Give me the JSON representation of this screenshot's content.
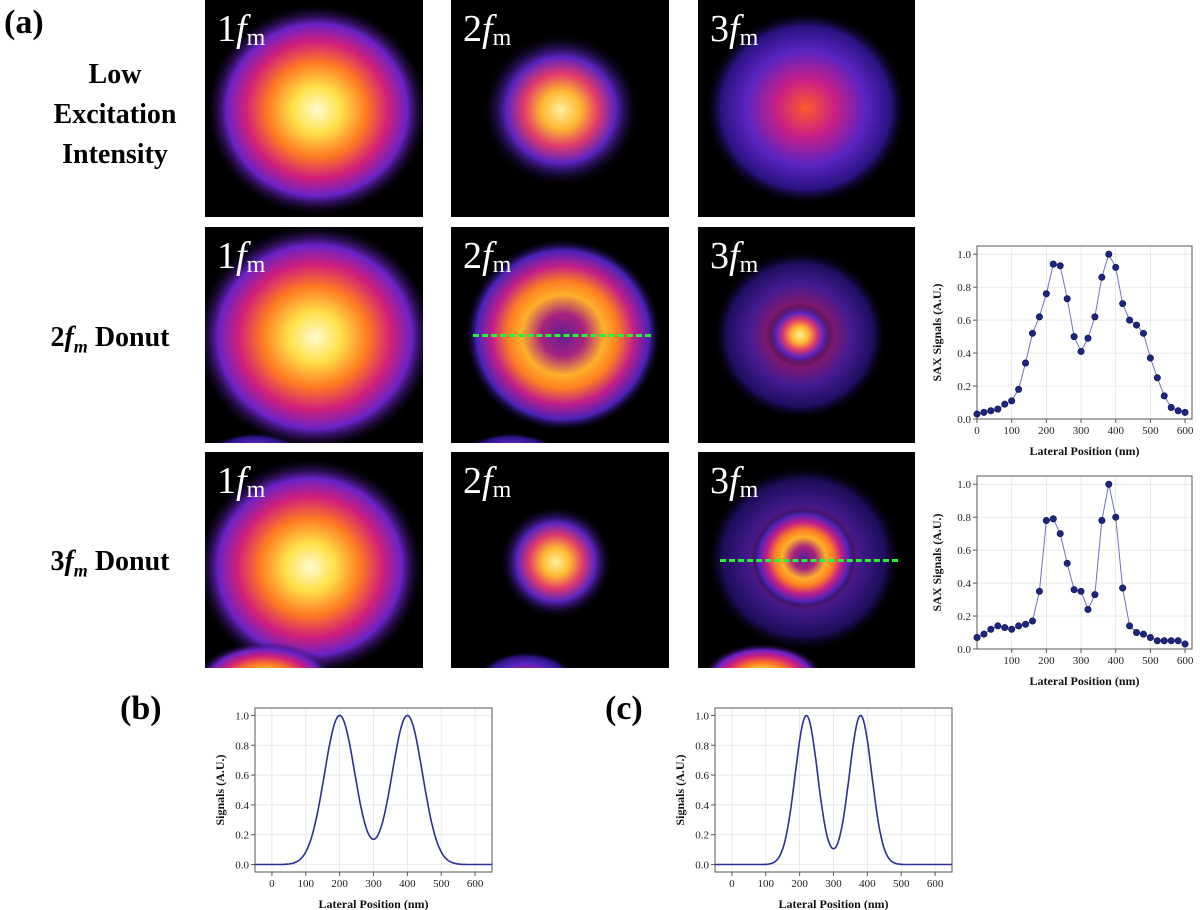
{
  "figure": {
    "panel_a": "(a)",
    "panel_b": "(b)",
    "panel_c": "(c)"
  },
  "rows": [
    {
      "label_lines": [
        "Low",
        "Excitation",
        "Intensity"
      ]
    },
    {
      "label_prefix": "2",
      "label_italic": "f",
      "label_sub": "m",
      "label_suffix": " Donut"
    },
    {
      "label_prefix": "3",
      "label_italic": "f",
      "label_sub": "m",
      "label_suffix": " Donut"
    }
  ],
  "tiles": {
    "t1": {
      "num": "1",
      "f": "f",
      "sub": "m"
    },
    "t2": {
      "num": "2",
      "f": "f",
      "sub": "m"
    },
    "t3": {
      "num": "3",
      "f": "f",
      "sub": "m"
    }
  },
  "chart_data": [
    {
      "id": "2fm_profile",
      "type": "line",
      "xlabel": "Lateral Position (nm)",
      "ylabel": "SAX Signals (A.U.)",
      "xlim": [
        0,
        620
      ],
      "ylim": [
        0,
        1.05
      ],
      "xticks": [
        "0",
        "100",
        "200",
        "300",
        "400",
        "500",
        "600"
      ],
      "yticks": [
        "0.0",
        "0.2",
        "0.4",
        "0.6",
        "0.8",
        "1.0"
      ],
      "x": [
        0,
        20,
        40,
        60,
        80,
        100,
        120,
        140,
        160,
        180,
        200,
        220,
        240,
        260,
        280,
        300,
        320,
        340,
        360,
        380,
        400,
        420,
        440,
        460,
        480,
        500,
        520,
        540,
        560,
        580,
        600
      ],
      "values": [
        0.03,
        0.04,
        0.05,
        0.06,
        0.09,
        0.11,
        0.18,
        0.34,
        0.52,
        0.62,
        0.76,
        0.94,
        0.93,
        0.73,
        0.5,
        0.41,
        0.49,
        0.62,
        0.86,
        1.0,
        0.92,
        0.7,
        0.6,
        0.57,
        0.52,
        0.37,
        0.25,
        0.14,
        0.07,
        0.05,
        0.04
      ]
    },
    {
      "id": "3fm_profile",
      "type": "line",
      "xlabel": "Lateral Position (nm)",
      "ylabel": "SAX Signals (A.U.)",
      "xlim": [
        0,
        620
      ],
      "ylim": [
        0,
        1.05
      ],
      "xticks": [
        "100",
        "200",
        "300",
        "400",
        "500",
        "600"
      ],
      "yticks": [
        "0.0",
        "0.2",
        "0.4",
        "0.6",
        "0.8",
        "1.0"
      ],
      "x": [
        0,
        20,
        40,
        60,
        80,
        100,
        120,
        140,
        160,
        180,
        200,
        220,
        240,
        260,
        280,
        300,
        320,
        340,
        360,
        380,
        400,
        420,
        440,
        460,
        480,
        500,
        520,
        540,
        560,
        580,
        600
      ],
      "values": [
        0.07,
        0.09,
        0.12,
        0.14,
        0.13,
        0.12,
        0.14,
        0.15,
        0.17,
        0.35,
        0.78,
        0.79,
        0.7,
        0.52,
        0.36,
        0.35,
        0.24,
        0.33,
        0.78,
        1.0,
        0.8,
        0.37,
        0.14,
        0.1,
        0.09,
        0.07,
        0.05,
        0.05,
        0.05,
        0.05,
        0.03
      ]
    },
    {
      "id": "simulated_2fm",
      "type": "line",
      "xlabel": "Lateral Position (nm)",
      "ylabel": "Signals (A.U.)",
      "xlim": [
        -50,
        650
      ],
      "ylim": [
        -0.05,
        1.05
      ],
      "xticks": [
        "0",
        "100",
        "200",
        "300",
        "400",
        "500",
        "600"
      ],
      "yticks": [
        "0.0",
        "0.2",
        "0.4",
        "0.6",
        "0.8",
        "1.0"
      ],
      "peaks": [
        200,
        400
      ],
      "sigma": 45,
      "label_note": "1.0"
    },
    {
      "id": "simulated_3fm",
      "type": "line",
      "xlabel": "Lateral Position (nm)",
      "ylabel": "Signals (A.U.)",
      "xlim": [
        -50,
        650
      ],
      "ylim": [
        -0.05,
        1.05
      ],
      "xticks": [
        "0",
        "100",
        "200",
        "300",
        "400",
        "500",
        "600"
      ],
      "yticks": [
        "0.0",
        "0.2",
        "0.4",
        "0.6",
        "0.8",
        "1.0"
      ],
      "peaks": [
        220,
        380
      ],
      "sigma": 33
    }
  ],
  "colors": {
    "line": "#2a2f9a",
    "marker": "#1c2580",
    "dashed": "#29f03a",
    "grid": "#e2e2e2"
  }
}
